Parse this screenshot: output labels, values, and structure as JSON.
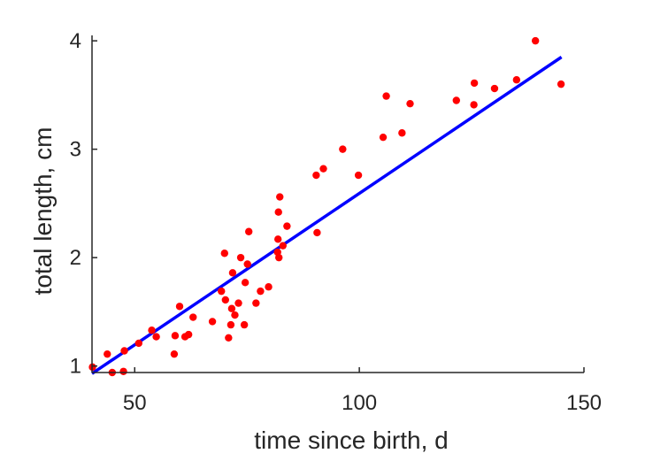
{
  "chart_data": {
    "type": "scatter",
    "title": "",
    "xlabel": "time since birth, d",
    "ylabel": "total length, cm",
    "xlim": [
      40.5,
      150
    ],
    "ylim": [
      0.94,
      4.05
    ],
    "xticks": [
      50,
      100,
      150
    ],
    "yticks": [
      1,
      2,
      3,
      4
    ],
    "grid": false,
    "series": [
      {
        "type": "scatter",
        "color": "#ff0000",
        "points": [
          [
            40.6,
            0.99
          ],
          [
            43.9,
            1.11
          ],
          [
            45.0,
            0.94
          ],
          [
            47.5,
            0.95
          ],
          [
            47.7,
            1.14
          ],
          [
            50.9,
            1.21
          ],
          [
            53.8,
            1.33
          ],
          [
            54.8,
            1.27
          ],
          [
            58.8,
            1.11
          ],
          [
            59.0,
            1.28
          ],
          [
            60.0,
            1.55
          ],
          [
            61.2,
            1.27
          ],
          [
            62.0,
            1.29
          ],
          [
            63.0,
            1.45
          ],
          [
            67.3,
            1.41
          ],
          [
            69.3,
            1.69
          ],
          [
            70.0,
            2.04
          ],
          [
            70.2,
            1.61
          ],
          [
            70.9,
            1.26
          ],
          [
            71.4,
            1.38
          ],
          [
            71.6,
            1.53
          ],
          [
            71.8,
            1.86
          ],
          [
            72.3,
            1.47
          ],
          [
            73.1,
            1.58
          ],
          [
            73.6,
            2.0
          ],
          [
            74.4,
            1.38
          ],
          [
            74.6,
            1.77
          ],
          [
            75.1,
            1.94
          ],
          [
            75.4,
            2.24
          ],
          [
            77.0,
            1.58
          ],
          [
            78.0,
            1.69
          ],
          [
            79.8,
            1.73
          ],
          [
            81.8,
            2.05
          ],
          [
            81.9,
            2.17
          ],
          [
            82.0,
            2.42
          ],
          [
            82.1,
            2.0
          ],
          [
            82.3,
            2.56
          ],
          [
            83.0,
            2.11
          ],
          [
            83.9,
            2.29
          ],
          [
            90.4,
            2.76
          ],
          [
            90.6,
            2.23
          ],
          [
            92.0,
            2.82
          ],
          [
            96.3,
            3.0
          ],
          [
            99.8,
            2.76
          ],
          [
            105.3,
            3.11
          ],
          [
            106.0,
            3.49
          ],
          [
            109.5,
            3.15
          ],
          [
            111.3,
            3.42
          ],
          [
            121.6,
            3.45
          ],
          [
            125.5,
            3.41
          ],
          [
            125.6,
            3.61
          ],
          [
            130.1,
            3.56
          ],
          [
            135.0,
            3.64
          ],
          [
            139.2,
            4.0
          ],
          [
            144.9,
            3.6
          ]
        ]
      },
      {
        "type": "line",
        "color": "#0000ff",
        "points": [
          [
            40.5,
            0.93
          ],
          [
            145.0,
            3.85
          ]
        ]
      }
    ]
  }
}
